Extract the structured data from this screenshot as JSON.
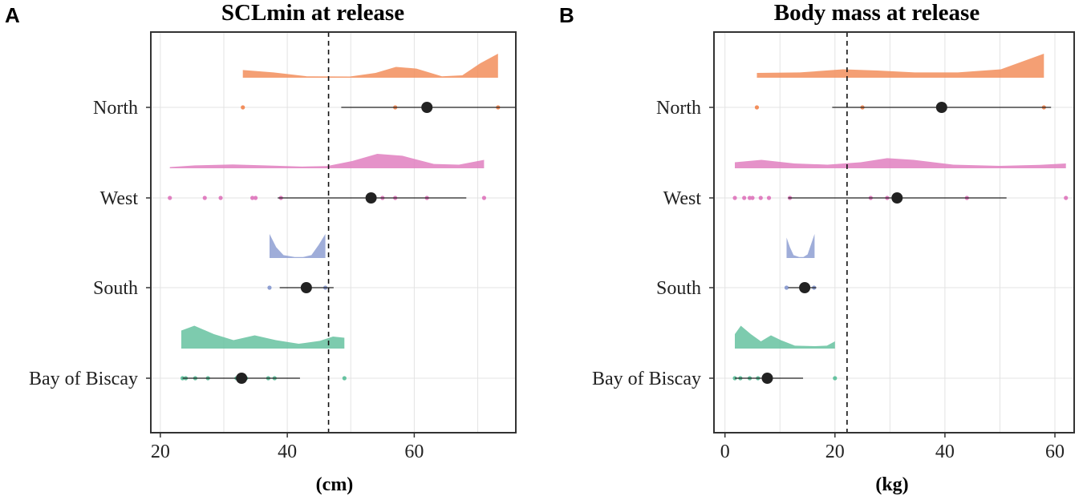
{
  "figure": {
    "panel_labels": [
      "A",
      "B"
    ]
  },
  "colors": {
    "North": "#f28e5c",
    "West": "#e07fc0",
    "South": "#8e9fd2",
    "Bay of Biscay": "#66c2a0",
    "summary": "#222222",
    "grid": "#e3e3e3",
    "frame": "#333333"
  },
  "chart_data": [
    {
      "type": "raincloud",
      "panel": "A",
      "title": "SCLmin at release",
      "xlabel": "(cm)",
      "ylabel": "",
      "xlim": [
        18.5,
        76
      ],
      "xticks": [
        20,
        40,
        60
      ],
      "xtick_labels": [
        "20",
        "40",
        "60"
      ],
      "minor_gridlines": [
        30,
        50,
        70
      ],
      "reference_line": 46.5,
      "categories": [
        "North",
        "West",
        "South",
        "Bay of Biscay"
      ],
      "groups": [
        {
          "name": "North",
          "points": [
            33,
            57,
            73.2
          ],
          "mean": 62,
          "ci": [
            48.5,
            76
          ],
          "density": {
            "range": [
              33,
              73.2
            ],
            "shape": [
              [
                0,
                0.32
              ],
              [
                0.12,
                0.22
              ],
              [
                0.25,
                0.06
              ],
              [
                0.42,
                0.05
              ],
              [
                0.52,
                0.2
              ],
              [
                0.6,
                0.45
              ],
              [
                0.68,
                0.38
              ],
              [
                0.78,
                0.06
              ],
              [
                0.86,
                0.1
              ],
              [
                0.93,
                0.6
              ],
              [
                1,
                1
              ]
            ]
          }
        },
        {
          "name": "West",
          "points": [
            21.5,
            27,
            29.5,
            34.5,
            35,
            39,
            55,
            57,
            62,
            71
          ],
          "mean": 53.2,
          "ci": [
            38.5,
            68.2
          ],
          "density": {
            "range": [
              21.5,
              71
            ],
            "shape": [
              [
                0,
                0.05
              ],
              [
                0.08,
                0.12
              ],
              [
                0.2,
                0.16
              ],
              [
                0.3,
                0.12
              ],
              [
                0.42,
                0.07
              ],
              [
                0.5,
                0.09
              ],
              [
                0.58,
                0.3
              ],
              [
                0.66,
                0.6
              ],
              [
                0.74,
                0.52
              ],
              [
                0.84,
                0.18
              ],
              [
                0.92,
                0.15
              ],
              [
                1,
                0.35
              ]
            ]
          }
        },
        {
          "name": "South",
          "points": [
            37.2,
            46
          ],
          "mean": 43,
          "ci": [
            38.8,
            47.3
          ],
          "density": {
            "range": [
              37.2,
              46
            ],
            "shape": [
              [
                0,
                1
              ],
              [
                0.12,
                0.45
              ],
              [
                0.25,
                0.12
              ],
              [
                0.45,
                0.04
              ],
              [
                0.6,
                0.04
              ],
              [
                0.75,
                0.12
              ],
              [
                0.88,
                0.55
              ],
              [
                1,
                1
              ]
            ]
          }
        },
        {
          "name": "Bay of Biscay",
          "points": [
            23.5,
            24,
            25.5,
            27.5,
            32,
            33.5,
            37,
            38,
            49
          ],
          "mean": 32.8,
          "ci": [
            23.5,
            42
          ],
          "density": {
            "range": [
              23.3,
              49
            ],
            "shape": [
              [
                0,
                0.75
              ],
              [
                0.08,
                0.95
              ],
              [
                0.2,
                0.6
              ],
              [
                0.32,
                0.35
              ],
              [
                0.45,
                0.55
              ],
              [
                0.58,
                0.35
              ],
              [
                0.72,
                0.2
              ],
              [
                0.85,
                0.32
              ],
              [
                0.93,
                0.5
              ],
              [
                1,
                0.45
              ]
            ]
          }
        }
      ]
    },
    {
      "type": "raincloud",
      "panel": "B",
      "title": "Body mass at release",
      "xlabel": "(kg)",
      "ylabel": "",
      "xlim": [
        -2,
        63.5
      ],
      "xticks": [
        0,
        20,
        40,
        60
      ],
      "xtick_labels": [
        "0",
        "20",
        "40",
        "60"
      ],
      "minor_gridlines": [
        10,
        30,
        50
      ],
      "reference_line": 22.2,
      "categories": [
        "North",
        "West",
        "South",
        "Bay of Biscay"
      ],
      "groups": [
        {
          "name": "North",
          "points": [
            5.8,
            25,
            58
          ],
          "mean": 39.4,
          "ci": [
            19.5,
            59.3
          ],
          "density": {
            "range": [
              5.8,
              58
            ],
            "shape": [
              [
                0,
                0.2
              ],
              [
                0.15,
                0.22
              ],
              [
                0.3,
                0.35
              ],
              [
                0.42,
                0.3
              ],
              [
                0.55,
                0.22
              ],
              [
                0.7,
                0.22
              ],
              [
                0.85,
                0.35
              ],
              [
                1,
                1
              ]
            ]
          }
        },
        {
          "name": "West",
          "points": [
            1.8,
            3.5,
            4.5,
            5,
            6.5,
            8,
            11.8,
            26.5,
            29.5,
            44,
            62
          ],
          "mean": 31.3,
          "ci": [
            11.5,
            51.2
          ],
          "density": {
            "range": [
              1.8,
              62
            ],
            "shape": [
              [
                0,
                0.25
              ],
              [
                0.08,
                0.35
              ],
              [
                0.18,
                0.2
              ],
              [
                0.28,
                0.15
              ],
              [
                0.38,
                0.25
              ],
              [
                0.46,
                0.42
              ],
              [
                0.54,
                0.35
              ],
              [
                0.66,
                0.15
              ],
              [
                0.8,
                0.1
              ],
              [
                0.92,
                0.14
              ],
              [
                1,
                0.2
              ]
            ]
          }
        },
        {
          "name": "South",
          "points": [
            11.2,
            16.2
          ],
          "mean": 14.5,
          "ci": [
            11.5,
            16.6
          ],
          "density": {
            "range": [
              11.2,
              16.3
            ],
            "shape": [
              [
                0,
                0.85
              ],
              [
                0.12,
                0.45
              ],
              [
                0.25,
                0.12
              ],
              [
                0.45,
                0.04
              ],
              [
                0.6,
                0.04
              ],
              [
                0.75,
                0.15
              ],
              [
                0.88,
                0.6
              ],
              [
                1,
                1
              ]
            ]
          }
        },
        {
          "name": "Bay of Biscay",
          "points": [
            1.8,
            2.8,
            4.5,
            6,
            8,
            20
          ],
          "mean": 7.7,
          "ci": [
            1.8,
            14.2
          ],
          "density": {
            "range": [
              1.8,
              20
            ],
            "shape": [
              [
                0,
                0.6
              ],
              [
                0.06,
                0.95
              ],
              [
                0.16,
                0.6
              ],
              [
                0.26,
                0.3
              ],
              [
                0.36,
                0.55
              ],
              [
                0.46,
                0.35
              ],
              [
                0.6,
                0.12
              ],
              [
                0.8,
                0.1
              ],
              [
                0.92,
                0.12
              ],
              [
                1,
                0.3
              ]
            ]
          }
        }
      ]
    }
  ]
}
